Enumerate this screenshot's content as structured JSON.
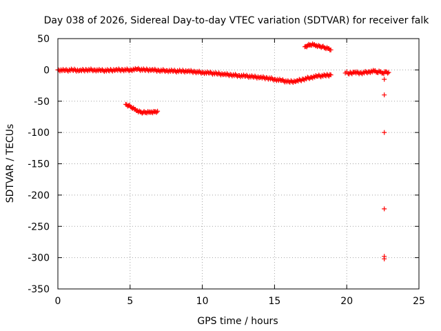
{
  "chart_data": {
    "type": "scatter",
    "title": "Day 038 of 2026, Sidereal Day-to-day VTEC variation (SDTVAR) for receiver falk",
    "xlabel": "GPS time / hours",
    "ylabel": "SDTVAR / TECUs",
    "xlim": [
      0,
      25
    ],
    "ylim": [
      -350,
      50
    ],
    "xticks": [
      "0",
      "5",
      "10",
      "15",
      "20",
      "25"
    ],
    "xtick_values": [
      0,
      5,
      10,
      15,
      20,
      25
    ],
    "yticks": [
      "50",
      "0",
      "-50",
      "-100",
      "-150",
      "-200",
      "-250",
      "-300",
      "-350"
    ],
    "ytick_values": [
      50,
      0,
      -50,
      -100,
      -150,
      -200,
      -250,
      -300,
      -350
    ],
    "grid": true,
    "marker": "+",
    "series_color": "#ff0000",
    "series": [
      {
        "name": "main band",
        "x": [
          0.0,
          0.5,
          1.0,
          1.5,
          2.0,
          2.5,
          3.0,
          3.5,
          4.0,
          4.5,
          5.0,
          5.5,
          6.0,
          6.5,
          7.0,
          7.5,
          8.0,
          8.5,
          9.0,
          9.5,
          10.0,
          10.5,
          11.0,
          11.5,
          12.0,
          12.5,
          13.0,
          13.5,
          14.0,
          14.5,
          15.0,
          15.5,
          16.0,
          16.5,
          17.0,
          17.5,
          18.0,
          18.5,
          18.9
        ],
        "y": [
          0,
          -1,
          0,
          -1,
          0,
          0,
          -1,
          -1,
          0,
          0,
          0,
          1,
          0,
          0,
          -1,
          -1,
          -2,
          -2,
          -2,
          -3,
          -4,
          -5,
          -6,
          -7,
          -8,
          -9,
          -10,
          -11,
          -12,
          -13,
          -15,
          -17,
          -19,
          -18,
          -15,
          -12,
          -10,
          -9,
          -8
        ]
      },
      {
        "name": "lower arc",
        "x": [
          4.7,
          4.9,
          5.1,
          5.3,
          5.5,
          5.7,
          5.9,
          6.1,
          6.3,
          6.5,
          6.7,
          6.9
        ],
        "y": [
          -55,
          -57,
          -60,
          -63,
          -65,
          -67,
          -68,
          -68,
          -68,
          -67,
          -67,
          -66
        ]
      },
      {
        "name": "upper arc",
        "x": [
          17.1,
          17.3,
          17.5,
          17.7,
          17.9,
          18.1,
          18.3,
          18.5,
          18.7,
          18.9
        ],
        "y": [
          37,
          39,
          40,
          40,
          39,
          38,
          37,
          35,
          34,
          32
        ]
      },
      {
        "name": "late segment",
        "x": [
          19.9,
          20.0,
          20.1,
          20.5,
          21.0,
          21.5,
          21.9,
          22.1,
          22.3,
          22.5,
          22.7,
          22.9
        ],
        "y": [
          -5,
          -3,
          -6,
          -4,
          -5,
          -3,
          -2,
          -4,
          -3,
          -5,
          -3,
          -4
        ]
      },
      {
        "name": "outliers",
        "x": [
          22.6,
          22.6,
          22.6,
          22.6,
          22.6,
          22.6
        ],
        "y": [
          -15,
          -40,
          -100,
          -222,
          -298,
          -302
        ]
      }
    ]
  }
}
